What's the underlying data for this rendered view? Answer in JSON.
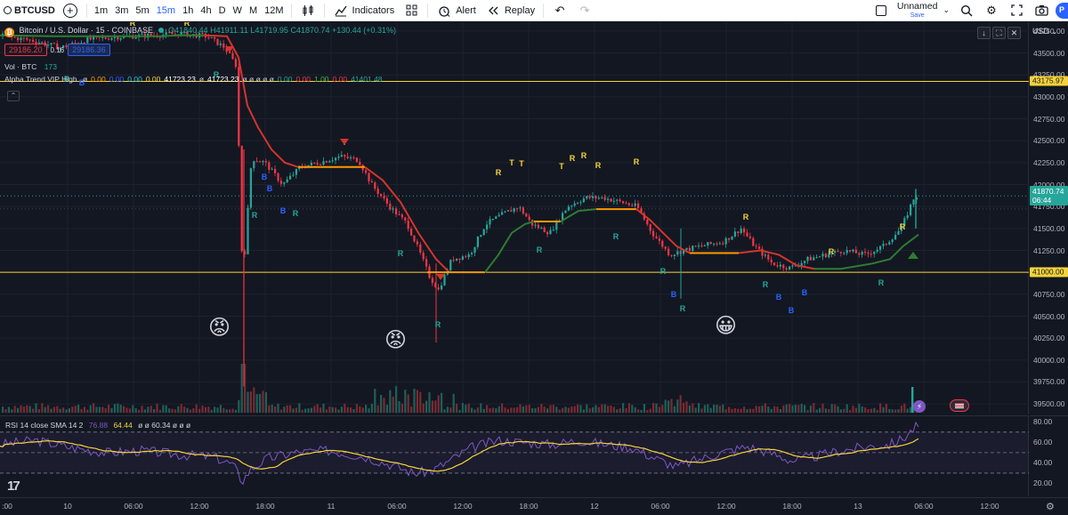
{
  "toolbar": {
    "symbol": "BTCUSD",
    "timeframes": [
      "1m",
      "3m",
      "5m",
      "15m",
      "1h",
      "4h",
      "D",
      "W",
      "M",
      "12M"
    ],
    "active_timeframe": "15m",
    "indicators_label": "Indicators",
    "alert_label": "Alert",
    "replay_label": "Replay",
    "layout_name": "Unnamed",
    "save_label": "Save",
    "publish_label": "P"
  },
  "legend": {
    "title": "Bitcoin / U.S. Dollar · 15 · COINBASE",
    "open": "O41840.44",
    "high": "H41911.11",
    "low": "L41719.95",
    "close": "C41870.74",
    "change": "+130.44 (+0.31%)",
    "bid": "29186.20",
    "spread": "0.16",
    "ask": "29186.36"
  },
  "volume_legend": {
    "name": "Vol · BTC",
    "value": "173"
  },
  "alpha_trend_legend": {
    "name": "Alpha Trend VIP High",
    "values": [
      {
        "text": "ø",
        "color": "#d1d4dc"
      },
      {
        "text": "0.00",
        "color": "#ff9800"
      },
      {
        "text": "0.00",
        "color": "#2962ff"
      },
      {
        "text": "0.00",
        "color": "#26c6da"
      },
      {
        "text": "0.00",
        "color": "#f5d33a"
      },
      {
        "text": "41723.23",
        "color": "#ffffff"
      },
      {
        "text": "ø",
        "color": "#d1d4dc"
      },
      {
        "text": "41723.23",
        "color": "#ffffff"
      },
      {
        "text": "ø ø ø ø ø",
        "color": "#d1d4dc"
      },
      {
        "text": "0.00",
        "color": "#26a69a"
      },
      {
        "text": "0.00",
        "color": "#f23645"
      },
      {
        "text": "1.00",
        "color": "#4caf50"
      },
      {
        "text": "0.00",
        "color": "#f23645"
      },
      {
        "text": "41401.48",
        "color": "#26a69a"
      }
    ]
  },
  "price_axis": {
    "currency": "USD",
    "ticks": [
      "43750.00",
      "43500.00",
      "43250.00",
      "43000.00",
      "42750.00",
      "42500.00",
      "42250.00",
      "42000.00",
      "41750.00",
      "41500.00",
      "41250.00",
      "41000.00",
      "40750.00",
      "40500.00",
      "40250.00",
      "40000.00",
      "39750.00",
      "39500.00"
    ],
    "tags": [
      {
        "text": "43175.97",
        "kind": "yellow"
      },
      {
        "text": "41000.00",
        "kind": "yellow"
      },
      {
        "text": "41870.74",
        "sub": "06:44",
        "kind": "green"
      }
    ]
  },
  "time_axis": {
    "labels": [
      ":00",
      "10",
      "06:00",
      "12:00",
      "18:00",
      "11",
      "06:00",
      "12:00",
      "18:00",
      "12",
      "06:00",
      "12:00",
      "18:00",
      "13",
      "06:00",
      "12:00"
    ]
  },
  "rsi": {
    "name": "RSI 14 close SMA 14 2",
    "rsi_value": "76.88",
    "sma_value": "64.44",
    "rest": "ø ø 60.34 ø ø ø",
    "ticks": [
      "80.00",
      "60.00",
      "40.00",
      "20.00"
    ]
  },
  "markers": {
    "emoji_angry": "😡",
    "emoji_smile": "😀"
  },
  "colors": {
    "up": "#26a69a",
    "down": "#f23645",
    "trend_down": "#d4352b",
    "trend_up": "#2e7d32",
    "trend_flat": "#ff9800",
    "level_line": "#f5d33a",
    "rsi_line": "#7e57c2",
    "rsi_sma": "#f5d33a"
  }
}
